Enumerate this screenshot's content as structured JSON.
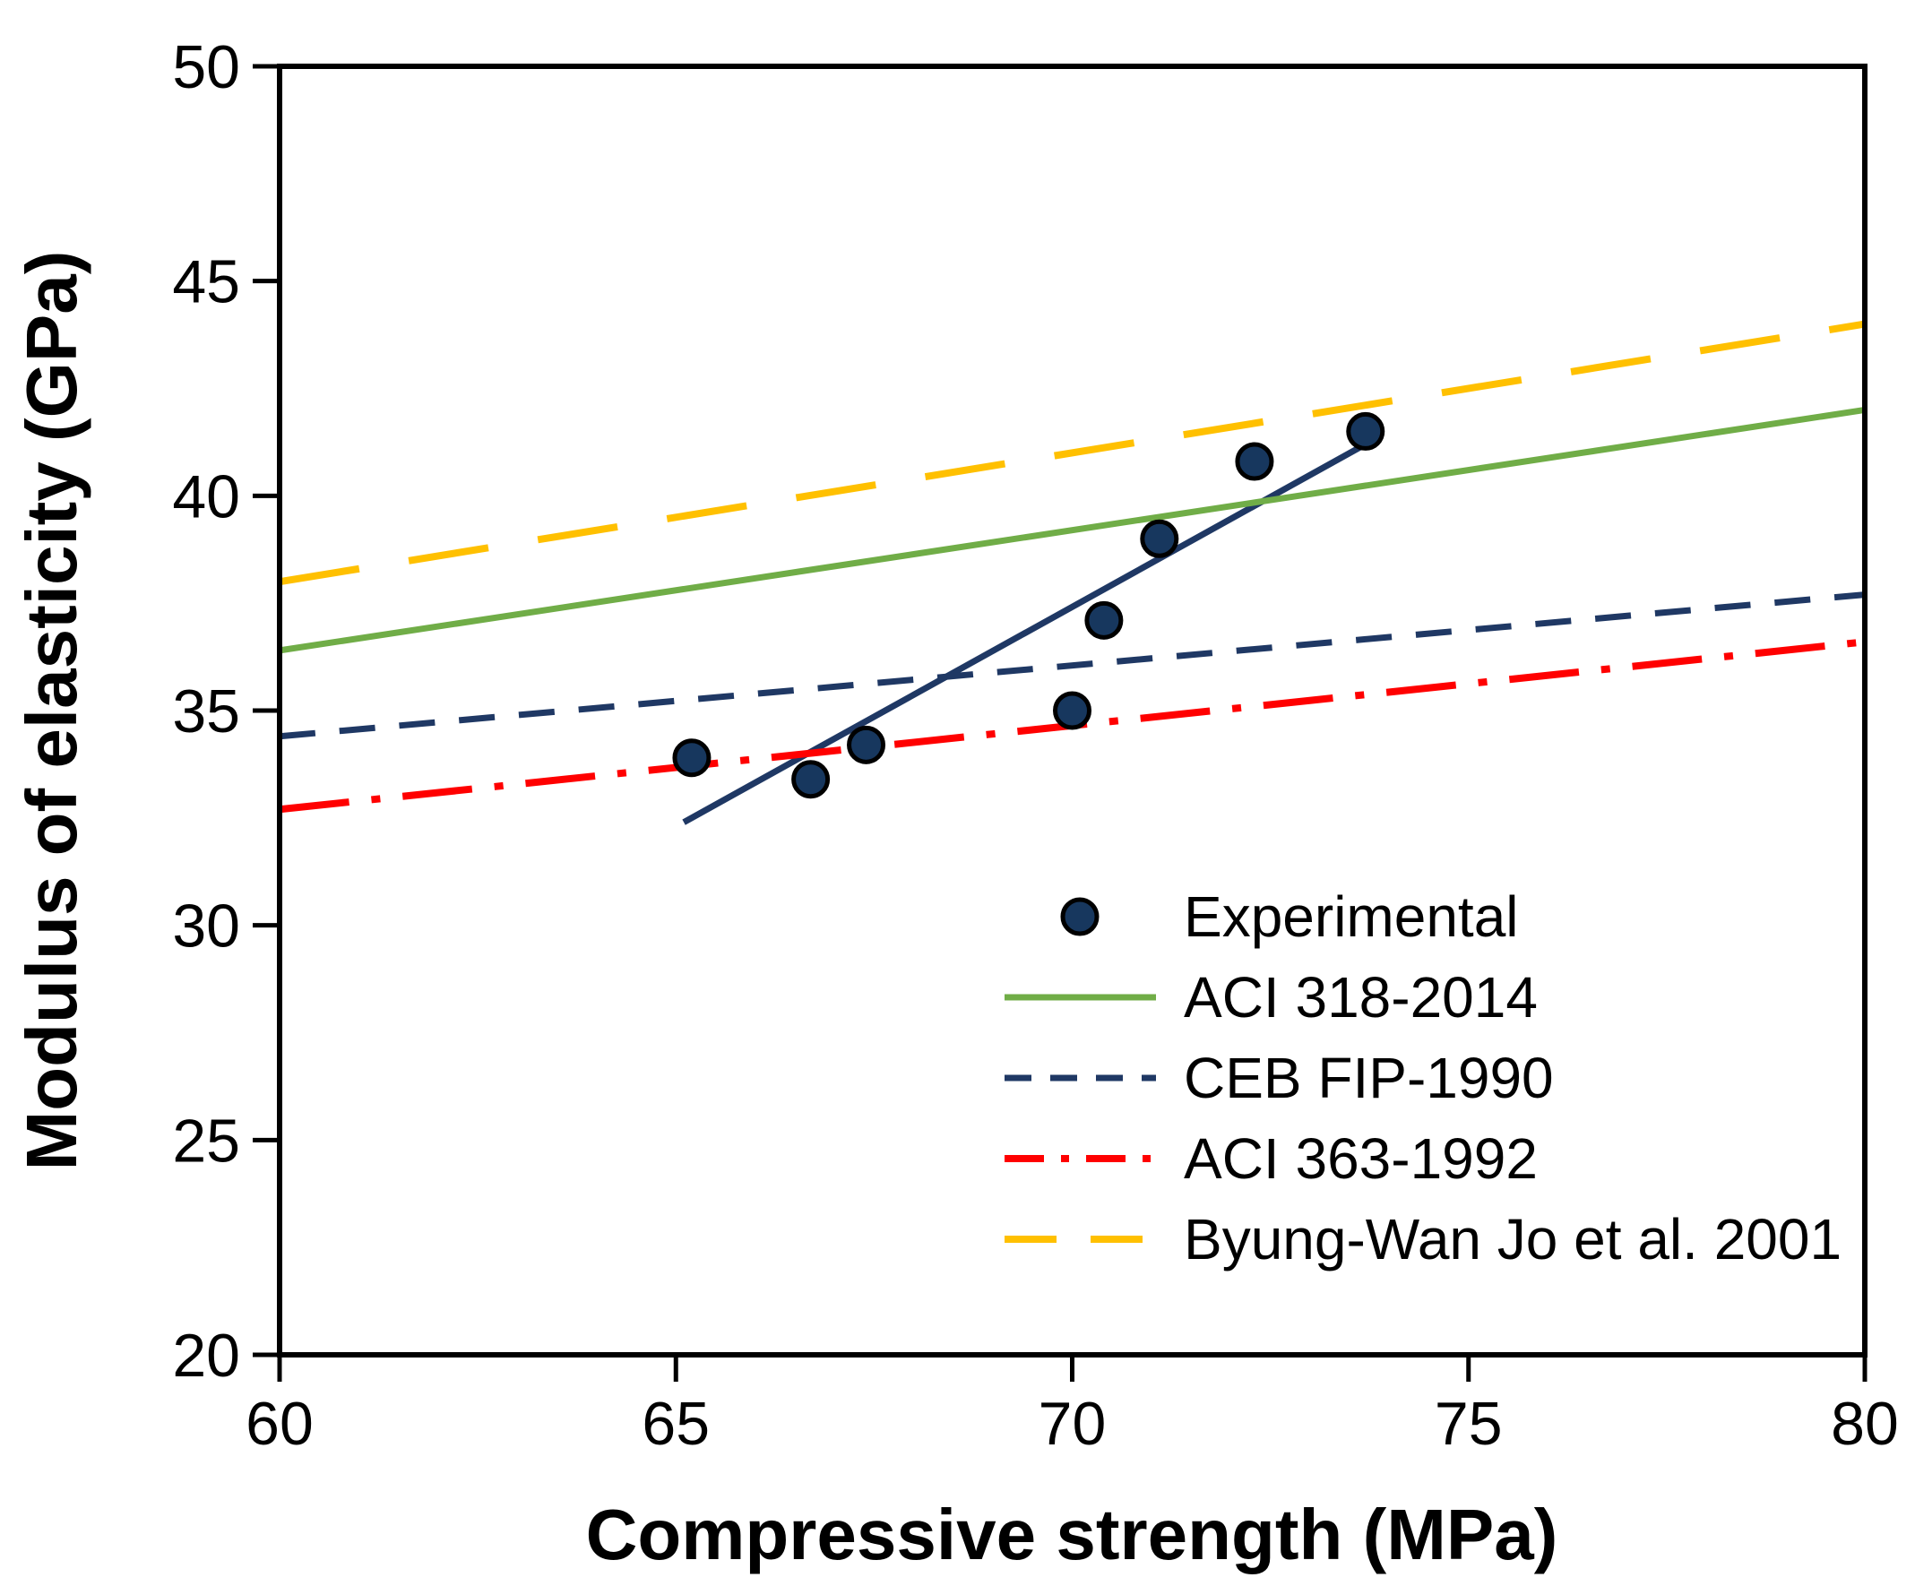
{
  "chart_data": {
    "type": "scatter",
    "title": "",
    "xlabel": "Compressive strength (MPa)",
    "ylabel": "Modulus of elasticity (GPa)",
    "xlim": [
      60,
      80
    ],
    "ylim": [
      20,
      50
    ],
    "xticks": [
      60,
      65,
      70,
      75,
      80
    ],
    "yticks": [
      20,
      25,
      30,
      35,
      40,
      45,
      50
    ],
    "grid": false,
    "legend_position": "inside lower right",
    "series": [
      {
        "name": "Experimental",
        "type": "scatter",
        "marker": "circle",
        "color": "#17375E",
        "marker_edge_color": "#000000",
        "points": [
          [
            65.2,
            33.9
          ],
          [
            66.7,
            33.4
          ],
          [
            67.4,
            34.2
          ],
          [
            70.0,
            35.0
          ],
          [
            70.4,
            37.1
          ],
          [
            71.1,
            39.0
          ],
          [
            72.3,
            40.8
          ],
          [
            73.7,
            41.5
          ]
        ]
      },
      {
        "name": "Experimental trend line",
        "type": "line",
        "style": "solid",
        "color": "#1F3864",
        "in_legend": false,
        "points": [
          [
            65.1,
            32.4
          ],
          [
            73.7,
            41.2
          ]
        ]
      },
      {
        "name": "ACI 318-2014",
        "type": "line",
        "style": "solid",
        "color": "#70AD47",
        "points": [
          [
            60,
            36.4
          ],
          [
            80,
            42.0
          ]
        ]
      },
      {
        "name": "CEB FIP-1990",
        "type": "line",
        "style": "dashed",
        "color": "#1F3864",
        "points": [
          [
            60,
            34.4
          ],
          [
            80,
            37.7
          ]
        ]
      },
      {
        "name": "ACI 363-1992",
        "type": "line",
        "style": "dashdot",
        "color": "#FF0000",
        "points": [
          [
            60,
            32.7
          ],
          [
            80,
            36.6
          ]
        ]
      },
      {
        "name": "Byung-Wan Jo et al. 2001",
        "type": "line",
        "style": "longdash",
        "color": "#FFC000",
        "points": [
          [
            60,
            38.0
          ],
          [
            80,
            44.0
          ]
        ]
      }
    ]
  }
}
